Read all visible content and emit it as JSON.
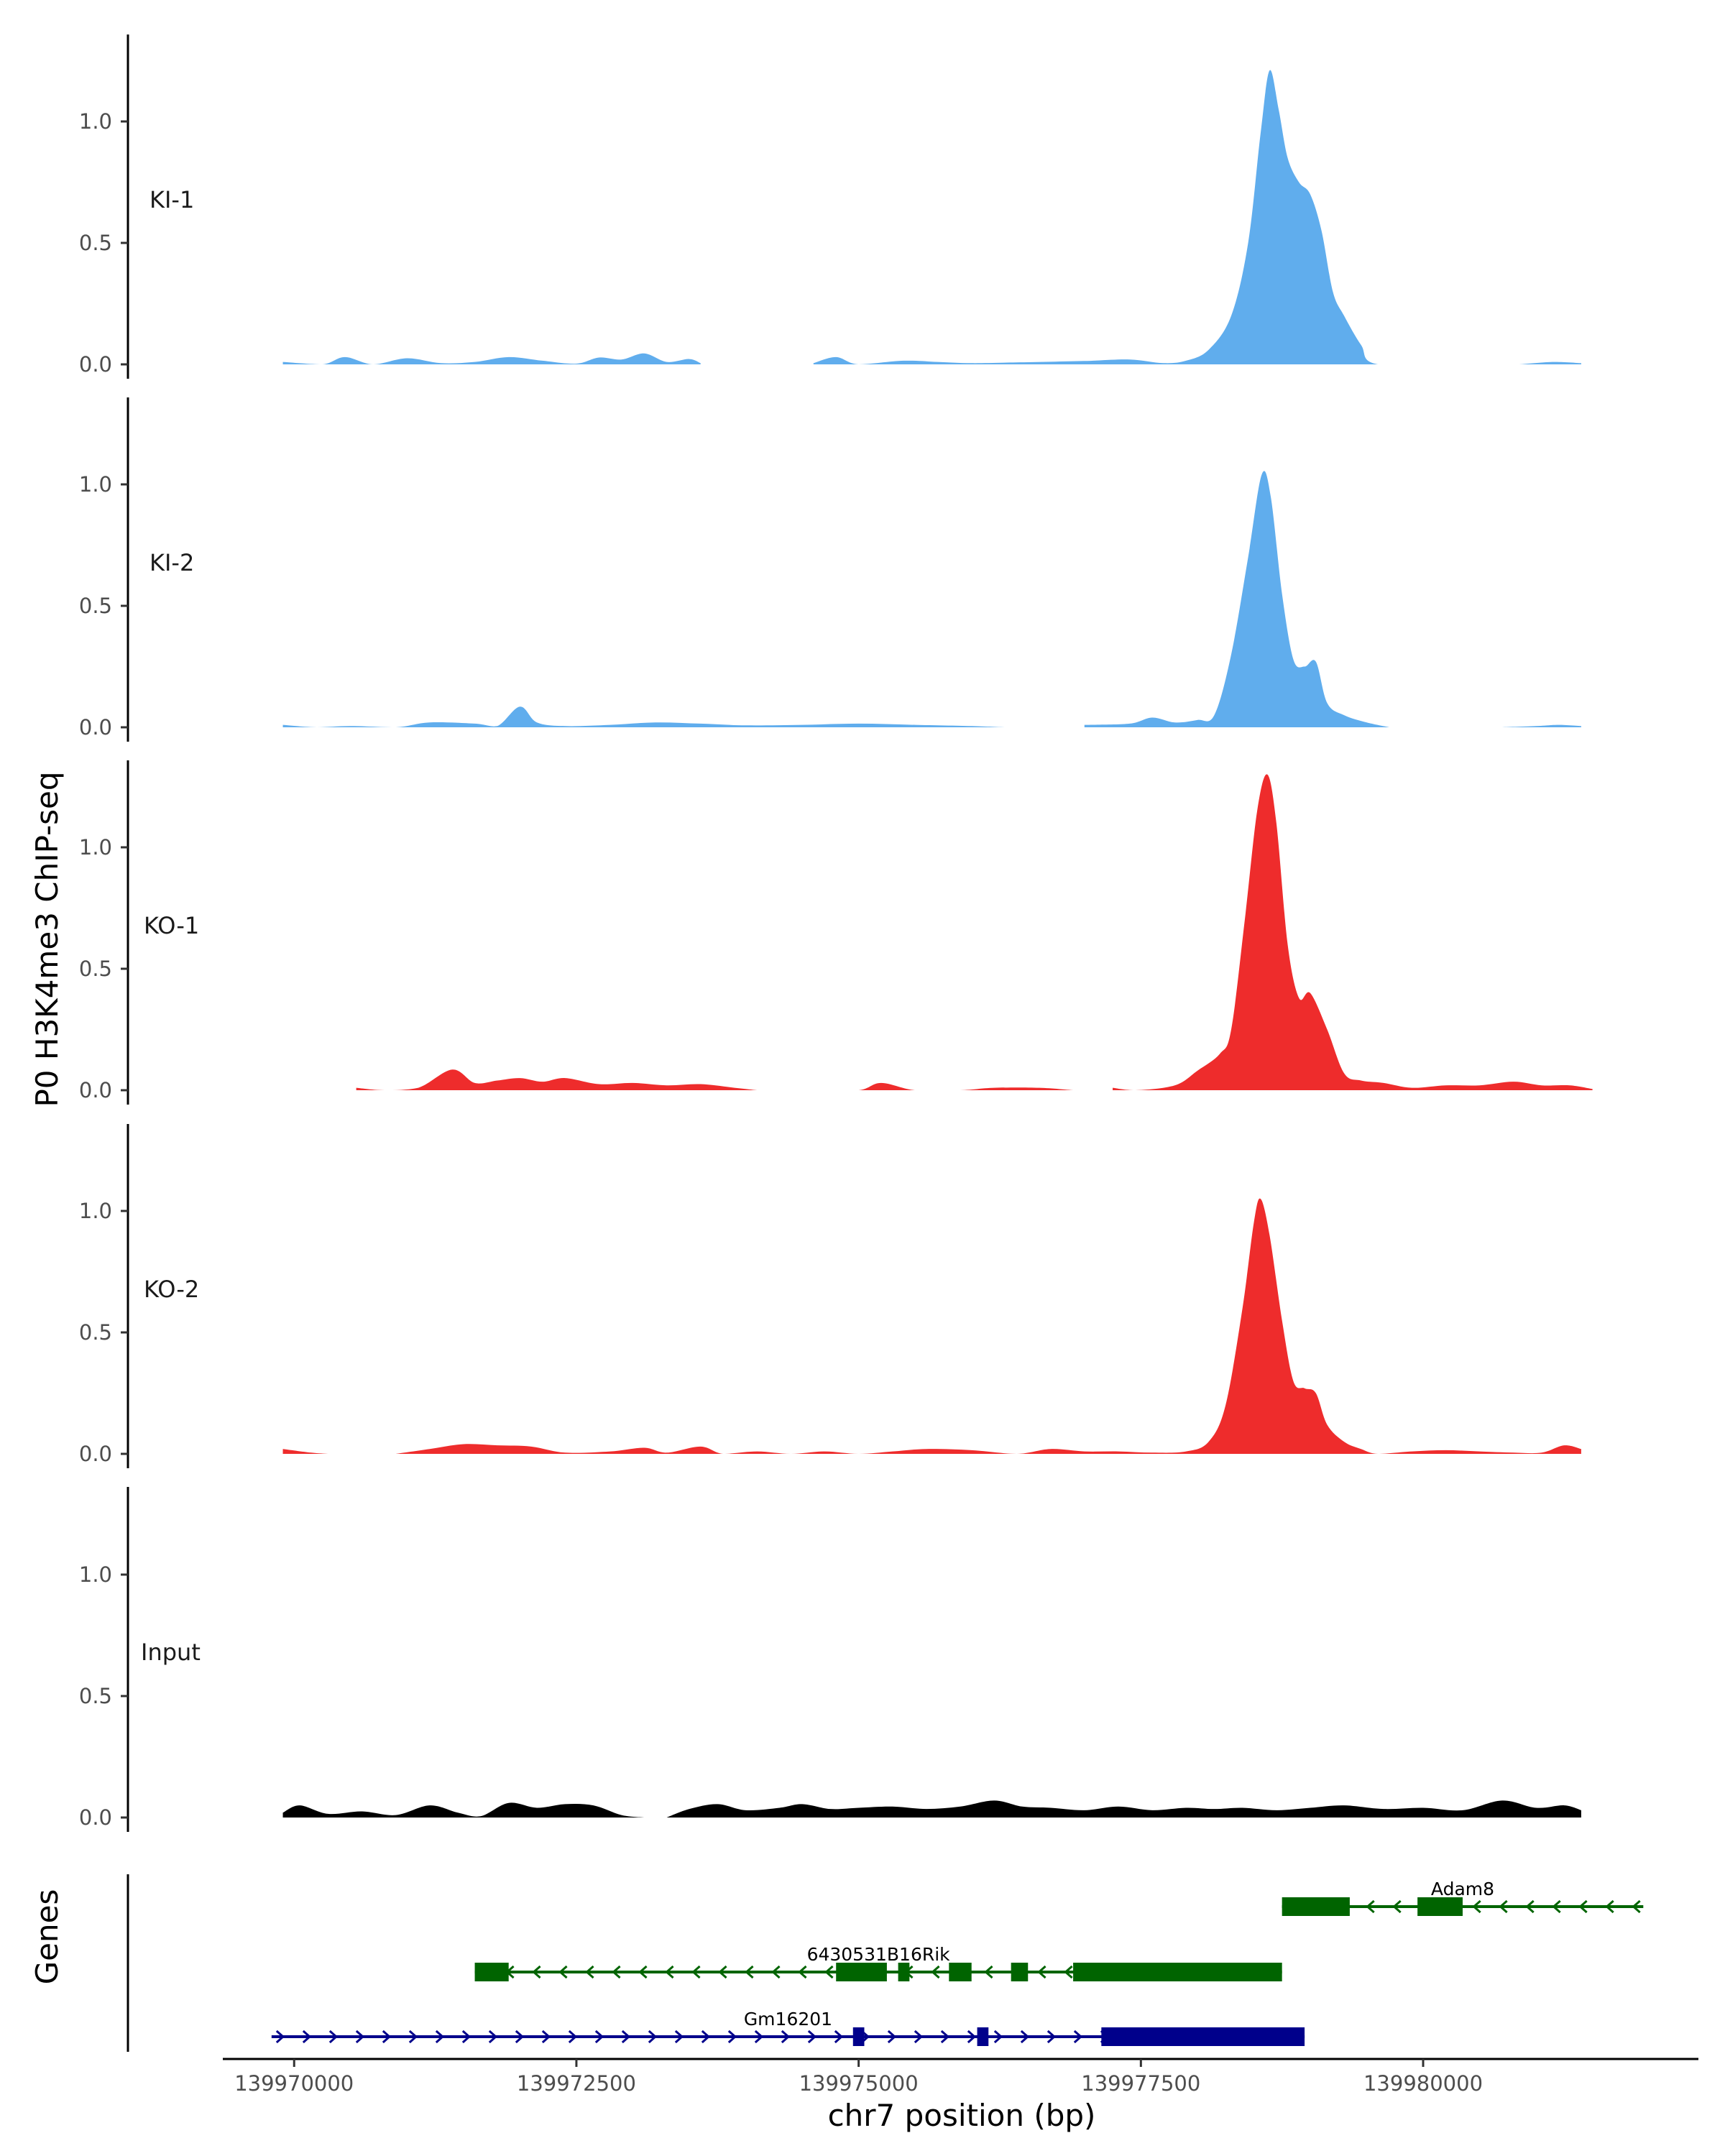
{
  "chart_data": {
    "type": "area",
    "y_axis_title": "P0 H3K4me3 ChIP-seq",
    "x_axis_title": "chr7 position (bp)",
    "xlim": [
      139969400,
      139982400
    ],
    "x_ticks": [
      139970000,
      139972500,
      139975000,
      139977500,
      139980000
    ],
    "x_tick_labels": [
      "139970000",
      "139972500",
      "139975000",
      "139977500",
      "139980000"
    ],
    "ylim": [
      0,
      1.35
    ],
    "y_ticks": [
      0.0,
      0.5,
      1.0
    ],
    "y_tick_labels": [
      "0.0",
      "0.5",
      "1.0"
    ],
    "grid": false,
    "tracks": [
      {
        "name": "KI-1",
        "color": "#60aded",
        "gaps": [
          [
            139973600,
            139974600
          ],
          [
            139978000,
            139978000
          ],
          [
            139980400,
            139980800
          ]
        ],
        "points": [
          [
            139969900,
            0.01
          ],
          [
            139970250,
            0.0
          ],
          [
            139970450,
            0.03
          ],
          [
            139970700,
            0.0
          ],
          [
            139971000,
            0.025
          ],
          [
            139971300,
            0.005
          ],
          [
            139971600,
            0.01
          ],
          [
            139971900,
            0.03
          ],
          [
            139972200,
            0.015
          ],
          [
            139972500,
            0.003
          ],
          [
            139972700,
            0.028
          ],
          [
            139972900,
            0.02
          ],
          [
            139973100,
            0.045
          ],
          [
            139973300,
            0.01
          ],
          [
            139973500,
            0.022
          ],
          [
            139973600,
            0.005
          ],
          [
            139974600,
            0.005
          ],
          [
            139974800,
            0.03
          ],
          [
            139975000,
            0.0
          ],
          [
            139975400,
            0.015
          ],
          [
            139975700,
            0.01
          ],
          [
            139976000,
            0.005
          ],
          [
            139976400,
            0.008
          ],
          [
            139977000,
            0.014
          ],
          [
            139977400,
            0.02
          ],
          [
            139977700,
            0.005
          ],
          [
            139977900,
            0.015
          ],
          [
            139978100,
            0.06
          ],
          [
            139978300,
            0.2
          ],
          [
            139978450,
            0.5
          ],
          [
            139978560,
            0.95
          ],
          [
            139978640,
            1.21
          ],
          [
            139978720,
            1.05
          ],
          [
            139978800,
            0.85
          ],
          [
            139978900,
            0.75
          ],
          [
            139979000,
            0.7
          ],
          [
            139979100,
            0.55
          ],
          [
            139979200,
            0.3
          ],
          [
            139979300,
            0.2
          ],
          [
            139979450,
            0.08
          ],
          [
            139979600,
            0.0
          ],
          [
            139980400,
            0.0
          ],
          [
            139980500,
            0.01
          ],
          [
            139980750,
            0.0
          ],
          [
            139980850,
            0.0
          ],
          [
            139981150,
            0.01
          ],
          [
            139981400,
            0.005
          ]
        ]
      },
      {
        "name": "KI-2",
        "color": "#60aded",
        "gaps": [
          [
            139976600,
            139977000
          ],
          [
            139979700,
            139980700
          ]
        ],
        "points": [
          [
            139969900,
            0.01
          ],
          [
            139970200,
            0.0
          ],
          [
            139970500,
            0.005
          ],
          [
            139970900,
            0.0
          ],
          [
            139971200,
            0.02
          ],
          [
            139971600,
            0.015
          ],
          [
            139971800,
            0.005
          ],
          [
            139972000,
            0.085
          ],
          [
            139972150,
            0.02
          ],
          [
            139972400,
            0.005
          ],
          [
            139972800,
            0.01
          ],
          [
            139973200,
            0.02
          ],
          [
            139973600,
            0.015
          ],
          [
            139974000,
            0.008
          ],
          [
            139974500,
            0.01
          ],
          [
            139975000,
            0.015
          ],
          [
            139975500,
            0.01
          ],
          [
            139976000,
            0.005
          ],
          [
            139976300,
            0.0
          ],
          [
            139976600,
            0.0
          ],
          [
            139977000,
            0.01
          ],
          [
            139977400,
            0.015
          ],
          [
            139977600,
            0.04
          ],
          [
            139977800,
            0.02
          ],
          [
            139978000,
            0.03
          ],
          [
            139978150,
            0.05
          ],
          [
            139978300,
            0.3
          ],
          [
            139978450,
            0.7
          ],
          [
            139978570,
            1.04
          ],
          [
            139978650,
            0.95
          ],
          [
            139978750,
            0.55
          ],
          [
            139978850,
            0.28
          ],
          [
            139978950,
            0.25
          ],
          [
            139979050,
            0.27
          ],
          [
            139979150,
            0.1
          ],
          [
            139979300,
            0.05
          ],
          [
            139979500,
            0.02
          ],
          [
            139979700,
            0.0
          ],
          [
            139980700,
            0.0
          ],
          [
            139981000,
            0.005
          ],
          [
            139981200,
            0.01
          ],
          [
            139981400,
            0.005
          ]
        ]
      },
      {
        "name": "KO-1",
        "color": "#ee2c2c",
        "gaps": [
          [
            139970050,
            139970550
          ],
          [
            139974100,
            139974600
          ],
          [
            139976900,
            139977250
          ],
          [
            139977400,
            139977600
          ]
        ],
        "points": [
          [
            139970450,
            0.0
          ],
          [
            139970550,
            0.01
          ],
          [
            139970800,
            0.0
          ],
          [
            139971100,
            0.01
          ],
          [
            139971400,
            0.085
          ],
          [
            139971600,
            0.03
          ],
          [
            139971800,
            0.04
          ],
          [
            139972000,
            0.05
          ],
          [
            139972200,
            0.035
          ],
          [
            139972400,
            0.05
          ],
          [
            139972700,
            0.025
          ],
          [
            139973000,
            0.03
          ],
          [
            139973300,
            0.02
          ],
          [
            139973600,
            0.025
          ],
          [
            139973900,
            0.01
          ],
          [
            139974100,
            0.0
          ],
          [
            139974400,
            0.02
          ],
          [
            139974600,
            0.0
          ],
          [
            139975000,
            0.0
          ],
          [
            139975200,
            0.03
          ],
          [
            139975500,
            0.0
          ],
          [
            139975900,
            0.0
          ],
          [
            139976200,
            0.01
          ],
          [
            139976600,
            0.01
          ],
          [
            139976900,
            0.0
          ],
          [
            139977250,
            0.01
          ],
          [
            139977450,
            0.0
          ],
          [
            139977800,
            0.02
          ],
          [
            139978000,
            0.08
          ],
          [
            139978200,
            0.15
          ],
          [
            139978300,
            0.25
          ],
          [
            139978420,
            0.7
          ],
          [
            139978530,
            1.15
          ],
          [
            139978620,
            1.3
          ],
          [
            139978700,
            1.1
          ],
          [
            139978800,
            0.6
          ],
          [
            139978900,
            0.38
          ],
          [
            139979000,
            0.4
          ],
          [
            139979150,
            0.25
          ],
          [
            139979300,
            0.07
          ],
          [
            139979450,
            0.04
          ],
          [
            139979650,
            0.03
          ],
          [
            139979900,
            0.01
          ],
          [
            139980200,
            0.02
          ],
          [
            139980500,
            0.02
          ],
          [
            139980800,
            0.035
          ],
          [
            139981050,
            0.02
          ],
          [
            139981300,
            0.02
          ],
          [
            139981500,
            0.005
          ]
        ]
      },
      {
        "name": "KO-2",
        "color": "#ee2c2c",
        "gaps": [
          [
            139970300,
            139970900
          ],
          [
            139975000,
            139975100
          ],
          [
            139977700,
            139977900
          ]
        ],
        "points": [
          [
            139969900,
            0.02
          ],
          [
            139970150,
            0.005
          ],
          [
            139970300,
            0.0
          ],
          [
            139970900,
            0.0
          ],
          [
            139971200,
            0.02
          ],
          [
            139971500,
            0.04
          ],
          [
            139971800,
            0.035
          ],
          [
            139972100,
            0.03
          ],
          [
            139972400,
            0.005
          ],
          [
            139972800,
            0.01
          ],
          [
            139973100,
            0.025
          ],
          [
            139973300,
            0.005
          ],
          [
            139973600,
            0.03
          ],
          [
            139973800,
            0.0
          ],
          [
            139974100,
            0.01
          ],
          [
            139974400,
            0.0
          ],
          [
            139974700,
            0.01
          ],
          [
            139975000,
            0.0
          ],
          [
            139975300,
            0.01
          ],
          [
            139975600,
            0.02
          ],
          [
            139976000,
            0.015
          ],
          [
            139976400,
            0.0
          ],
          [
            139976700,
            0.02
          ],
          [
            139977000,
            0.01
          ],
          [
            139977300,
            0.01
          ],
          [
            139977600,
            0.005
          ],
          [
            139977900,
            0.01
          ],
          [
            139978100,
            0.05
          ],
          [
            139978250,
            0.2
          ],
          [
            139978400,
            0.6
          ],
          [
            139978500,
            0.95
          ],
          [
            139978560,
            1.05
          ],
          [
            139978640,
            0.9
          ],
          [
            139978750,
            0.55
          ],
          [
            139978850,
            0.3
          ],
          [
            139978950,
            0.27
          ],
          [
            139979050,
            0.25
          ],
          [
            139979150,
            0.12
          ],
          [
            139979300,
            0.05
          ],
          [
            139979450,
            0.02
          ],
          [
            139979600,
            0.0
          ],
          [
            139979900,
            0.01
          ],
          [
            139980200,
            0.015
          ],
          [
            139980500,
            0.01
          ],
          [
            139980800,
            0.005
          ],
          [
            139981050,
            0.005
          ],
          [
            139981250,
            0.035
          ],
          [
            139981400,
            0.02
          ]
        ]
      },
      {
        "name": "Input",
        "color": "#000000",
        "gaps": [
          [
            139972400,
            139972600
          ],
          [
            139973100,
            139973300
          ]
        ],
        "points": [
          [
            139969900,
            0.02
          ],
          [
            139970050,
            0.05
          ],
          [
            139970300,
            0.015
          ],
          [
            139970600,
            0.025
          ],
          [
            139970900,
            0.01
          ],
          [
            139971200,
            0.05
          ],
          [
            139971450,
            0.02
          ],
          [
            139971650,
            0.005
          ],
          [
            139971900,
            0.06
          ],
          [
            139972150,
            0.04
          ],
          [
            139972400,
            0.055
          ],
          [
            139972650,
            0.05
          ],
          [
            139972900,
            0.01
          ],
          [
            139973100,
            0.0
          ],
          [
            139973300,
            0.0
          ],
          [
            139973500,
            0.035
          ],
          [
            139973750,
            0.055
          ],
          [
            139974000,
            0.03
          ],
          [
            139974300,
            0.04
          ],
          [
            139974500,
            0.055
          ],
          [
            139974750,
            0.035
          ],
          [
            139975000,
            0.04
          ],
          [
            139975300,
            0.045
          ],
          [
            139975600,
            0.035
          ],
          [
            139975900,
            0.045
          ],
          [
            139976200,
            0.07
          ],
          [
            139976450,
            0.045
          ],
          [
            139976700,
            0.04
          ],
          [
            139977000,
            0.03
          ],
          [
            139977300,
            0.045
          ],
          [
            139977600,
            0.03
          ],
          [
            139977900,
            0.04
          ],
          [
            139978150,
            0.035
          ],
          [
            139978400,
            0.04
          ],
          [
            139978700,
            0.03
          ],
          [
            139979000,
            0.04
          ],
          [
            139979300,
            0.05
          ],
          [
            139979650,
            0.035
          ],
          [
            139980000,
            0.04
          ],
          [
            139980350,
            0.03
          ],
          [
            139980700,
            0.07
          ],
          [
            139981000,
            0.04
          ],
          [
            139981250,
            0.05
          ],
          [
            139981400,
            0.03
          ]
        ]
      }
    ],
    "genes_track": {
      "label": "Genes",
      "genes": [
        {
          "name": "Adam8",
          "color": "#006400",
          "strand": "-",
          "start": 139978750,
          "end": 139981950,
          "exons": [
            [
              139978750,
              139979350
            ],
            [
              139979950,
              139980350
            ]
          ]
        },
        {
          "name": "6430531B16Rik",
          "color": "#006400",
          "strand": "-",
          "start": 139971600,
          "end": 139978750,
          "exons": [
            [
              139971600,
              139971900
            ],
            [
              139974800,
              139975250
            ],
            [
              139975350,
              139975450
            ],
            [
              139975800,
              139976000
            ],
            [
              139976350,
              139976500
            ],
            [
              139976900,
              139978750
            ]
          ]
        },
        {
          "name": "Gm16201",
          "color": "#00008b",
          "strand": "+",
          "start": 139969800,
          "end": 139978950,
          "exons": [
            [
              139974950,
              139975050
            ],
            [
              139976050,
              139976150
            ],
            [
              139977150,
              139978950
            ]
          ]
        }
      ]
    }
  }
}
